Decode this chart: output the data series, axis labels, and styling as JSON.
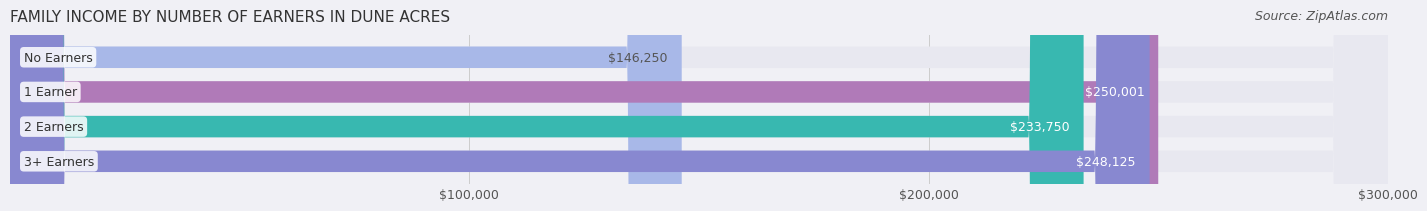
{
  "title": "FAMILY INCOME BY NUMBER OF EARNERS IN DUNE ACRES",
  "source": "Source: ZipAtlas.com",
  "categories": [
    "No Earners",
    "1 Earner",
    "2 Earners",
    "3+ Earners"
  ],
  "values": [
    146250,
    250001,
    233750,
    248125
  ],
  "bar_colors": [
    "#a8b8e8",
    "#b07ab8",
    "#38b8b0",
    "#8888d0"
  ],
  "label_colors": [
    "#555555",
    "#ffffff",
    "#ffffff",
    "#ffffff"
  ],
  "value_labels": [
    "$146,250",
    "$250,001",
    "$233,750",
    "$248,125"
  ],
  "xlim": [
    0,
    300000
  ],
  "xticks": [
    100000,
    200000,
    300000
  ],
  "xtick_labels": [
    "$100,000",
    "$200,000",
    "$300,000"
  ],
  "background_color": "#f0f0f5",
  "bar_bg_color": "#e8e8f0",
  "title_fontsize": 11,
  "source_fontsize": 9,
  "label_fontsize": 9,
  "value_fontsize": 9
}
